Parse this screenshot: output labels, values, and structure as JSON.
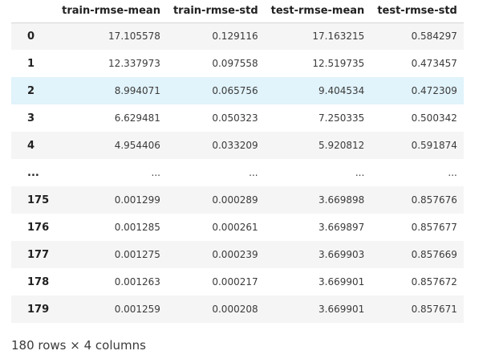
{
  "table": {
    "index_header": "",
    "columns": [
      "train-rmse-mean",
      "train-rmse-std",
      "test-rmse-mean",
      "test-rmse-std"
    ],
    "rows": [
      {
        "index": "0",
        "values": [
          "17.105578",
          "0.129116",
          "17.163215",
          "0.584297"
        ]
      },
      {
        "index": "1",
        "values": [
          "12.337973",
          "0.097558",
          "12.519735",
          "0.473457"
        ]
      },
      {
        "index": "2",
        "values": [
          "8.994071",
          "0.065756",
          "9.404534",
          "0.472309"
        ]
      },
      {
        "index": "3",
        "values": [
          "6.629481",
          "0.050323",
          "7.250335",
          "0.500342"
        ]
      },
      {
        "index": "4",
        "values": [
          "4.954406",
          "0.033209",
          "5.920812",
          "0.591874"
        ]
      },
      {
        "index": "...",
        "values": [
          "...",
          "...",
          "...",
          "..."
        ]
      },
      {
        "index": "175",
        "values": [
          "0.001299",
          "0.000289",
          "3.669898",
          "0.857676"
        ]
      },
      {
        "index": "176",
        "values": [
          "0.001285",
          "0.000261",
          "3.669897",
          "0.857677"
        ]
      },
      {
        "index": "177",
        "values": [
          "0.001275",
          "0.000239",
          "3.669903",
          "0.857669"
        ]
      },
      {
        "index": "178",
        "values": [
          "0.001263",
          "0.000217",
          "3.669901",
          "0.857672"
        ]
      },
      {
        "index": "179",
        "values": [
          "0.001259",
          "0.000208",
          "3.669901",
          "0.857671"
        ]
      }
    ],
    "highlighted_row": "2"
  },
  "shape_text": "180 rows × 4 columns"
}
